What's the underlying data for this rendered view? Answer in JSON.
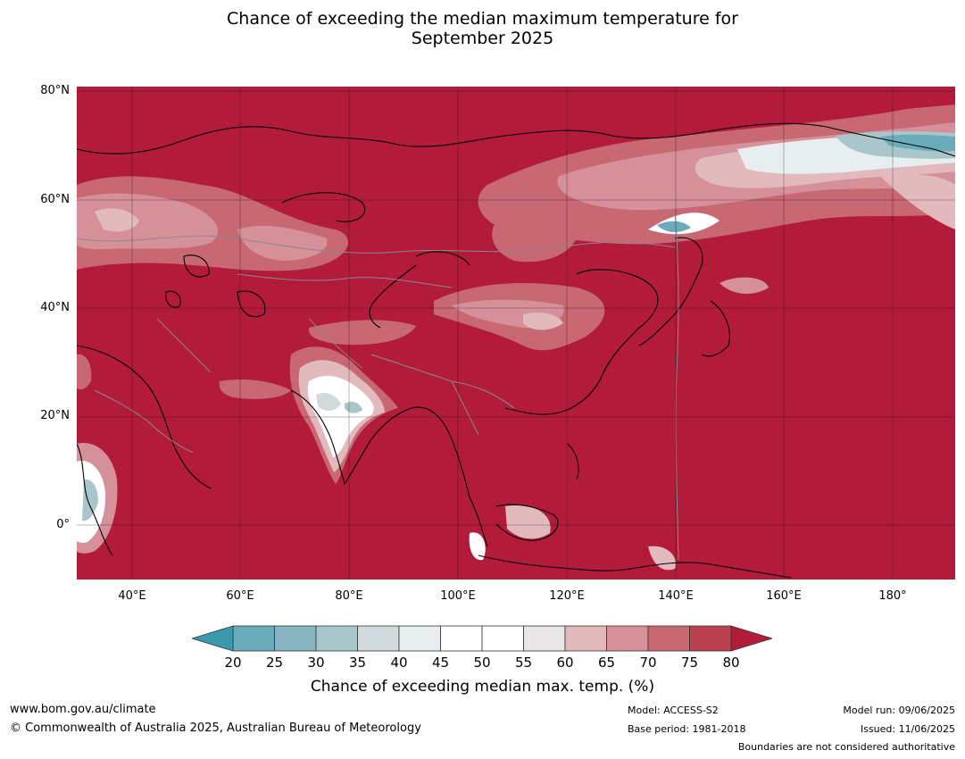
{
  "title_line1": "Chance of exceeding the median maximum temperature for",
  "title_line2": "September 2025",
  "lat_labels": [
    "80°N",
    "60°N",
    "40°N",
    "20°N",
    "0°"
  ],
  "lon_labels": [
    "40°E",
    "60°E",
    "80°E",
    "100°E",
    "120°E",
    "140°E",
    "160°E",
    "180°"
  ],
  "colorbar": {
    "ticks": [
      "20",
      "25",
      "30",
      "35",
      "40",
      "45",
      "50",
      "55",
      "60",
      "65",
      "70",
      "75",
      "80"
    ],
    "colors": [
      "#6aacba",
      "#88b6c2",
      "#a9c7cb",
      "#d1dadd",
      "#e8eef0",
      "#ffffff",
      "#ffffff",
      "#e8e6e6",
      "#e2babe",
      "#d6909a",
      "#c86872",
      "#bb404e"
    ],
    "low_arrow_color": "#3a9aad",
    "high_arrow_color": "#b21c3a",
    "label": "Chance of exceeding median max. temp. (%)"
  },
  "map": {
    "background_color": "#b21c3a",
    "lat_range": [
      -10,
      80
    ],
    "lon_range": [
      30,
      190
    ]
  },
  "footer": {
    "website": "www.bom.gov.au/climate",
    "copyright": "© Commonwealth of Australia 2025, Australian Bureau of Meteorology",
    "model": "Model: ACCESS-S2",
    "base_period": "Base period: 1981-2018",
    "model_run": "Model run: 09/06/2025",
    "issued": "Issued: 11/06/2025",
    "disclaimer": "Boundaries are not considered authoritative"
  }
}
